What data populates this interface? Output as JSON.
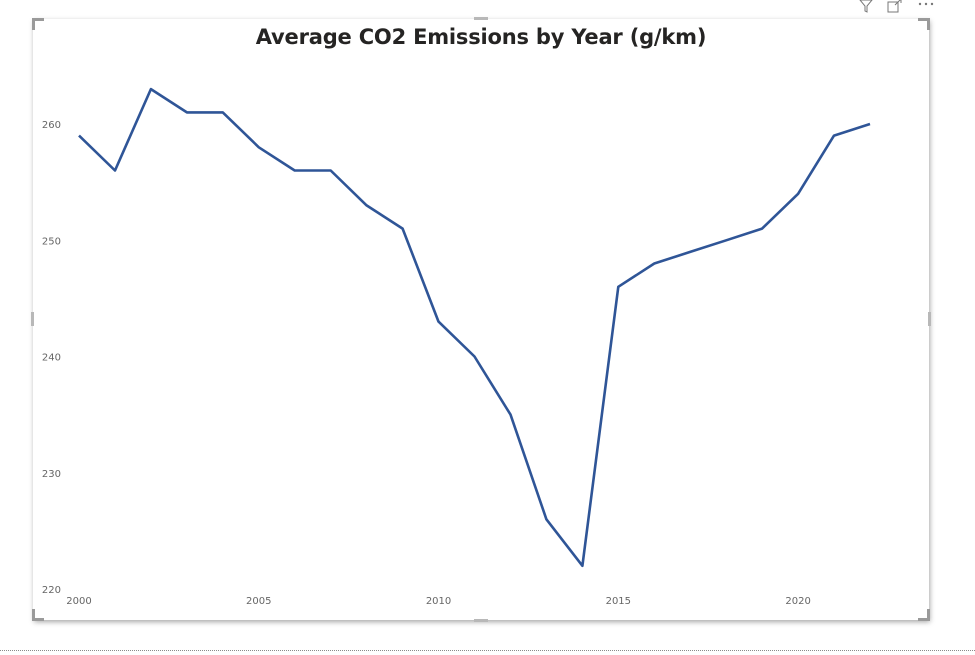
{
  "visual_header": {
    "filter_icon": "filter-icon",
    "focus_mode_icon": "focus-mode-icon",
    "more_options_icon": "more-options-icon"
  },
  "chart_data": {
    "type": "line",
    "title": "Average CO2 Emissions by Year (g/km)",
    "xlabel": "",
    "ylabel": "",
    "x": [
      2000,
      2001,
      2002,
      2003,
      2004,
      2005,
      2006,
      2007,
      2008,
      2009,
      2010,
      2011,
      2012,
      2013,
      2014,
      2015,
      2016,
      2017,
      2018,
      2019,
      2020,
      2021,
      2022
    ],
    "series": [
      {
        "values": [
          259,
          256,
          263,
          261,
          261,
          258,
          256,
          256,
          253,
          251,
          243,
          240,
          235,
          226,
          222,
          246,
          248,
          249,
          250,
          251,
          254,
          259,
          260
        ]
      }
    ],
    "xlim": [
      2000,
      2022
    ],
    "ylim": [
      220,
      260
    ],
    "x_ticks": [
      2000,
      2005,
      2010,
      2015,
      2020
    ],
    "y_ticks": [
      220,
      230,
      240,
      250,
      260
    ],
    "line_color": "#2f5597",
    "grid": false,
    "legend": "none"
  }
}
